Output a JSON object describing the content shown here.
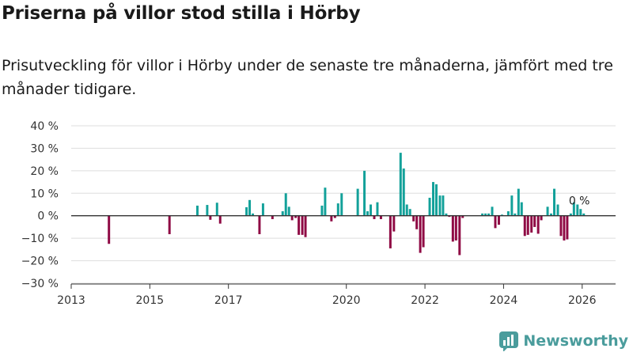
{
  "title": "Priserna på villor stod stilla i Hörby",
  "subtitle": "Prisutveckling för villor i Hörby under de senaste tre månaderna, jämfört med tre månader tidigare.",
  "brand": {
    "name": "Newsworthy"
  },
  "colors": {
    "positive": "#13a19a",
    "negative": "#8f0a44",
    "grid": "#dddddd",
    "axis": "#333333",
    "brand": "#4a9c9c"
  },
  "chart_data": {
    "type": "bar",
    "title": "Priserna på villor stod stilla i Hörby",
    "xlabel": "",
    "ylabel": "",
    "ylim": [
      -30,
      40
    ],
    "yticks": [
      -30,
      -20,
      -10,
      0,
      10,
      20,
      30,
      40
    ],
    "ytick_labels": [
      "−30 %",
      "−20 %",
      "−10 %",
      "0 %",
      "10 %",
      "20 %",
      "30 %",
      "40 %"
    ],
    "xlim": [
      2013.0,
      2026.85
    ],
    "xticks": [
      2013,
      2015,
      2017,
      2020,
      2022,
      2024,
      2026
    ],
    "xtick_labels": [
      "2013",
      "2015",
      "2017",
      "2020",
      "2022",
      "2024",
      "2026"
    ],
    "annotation": {
      "text": "0 %",
      "x": 2025.8,
      "y": 0.8
    },
    "bar_width_years": 0.06,
    "x": [
      2013.96,
      2015.5,
      2016.21,
      2016.46,
      2016.54,
      2016.71,
      2016.79,
      2017.46,
      2017.54,
      2017.62,
      2017.79,
      2017.88,
      2018.12,
      2018.38,
      2018.46,
      2018.54,
      2018.62,
      2018.71,
      2018.79,
      2018.88,
      2018.96,
      2019.38,
      2019.46,
      2019.62,
      2019.71,
      2019.79,
      2019.88,
      2020.29,
      2020.46,
      2020.54,
      2020.62,
      2020.71,
      2020.79,
      2020.88,
      2021.12,
      2021.21,
      2021.38,
      2021.46,
      2021.54,
      2021.62,
      2021.71,
      2021.79,
      2021.88,
      2021.96,
      2022.12,
      2022.21,
      2022.29,
      2022.38,
      2022.46,
      2022.54,
      2022.62,
      2022.71,
      2022.79,
      2022.88,
      2022.96,
      2023.46,
      2023.54,
      2023.62,
      2023.71,
      2023.79,
      2023.88,
      2023.96,
      2024.12,
      2024.21,
      2024.29,
      2024.38,
      2024.46,
      2024.54,
      2024.62,
      2024.71,
      2024.79,
      2024.88,
      2024.96,
      2025.12,
      2025.21,
      2025.29,
      2025.38,
      2025.46,
      2025.54,
      2025.62,
      2025.71,
      2025.79,
      2025.88,
      2025.96,
      2026.04
    ],
    "values": [
      -12.5,
      -8.2,
      4.5,
      4.8,
      -1.8,
      5.8,
      -3.5,
      3.8,
      7,
      1,
      -8.2,
      5.5,
      -1.5,
      2,
      10,
      4,
      -2,
      -1,
      -8.5,
      -8.5,
      -9.5,
      4.5,
      12.5,
      -2.5,
      -1,
      5.5,
      10,
      12,
      20,
      2,
      5,
      -1.5,
      6,
      -1.5,
      -14.5,
      -7,
      28,
      21,
      5,
      3,
      -2.5,
      -6,
      -16.5,
      -14,
      8,
      15,
      14,
      9,
      9,
      1,
      -0.5,
      -11.5,
      -11,
      -17.5,
      -1,
      1,
      1,
      1,
      4,
      -5.5,
      -4,
      0.5,
      2,
      9,
      1,
      12,
      6,
      -9,
      -8.5,
      -7.5,
      -5,
      -8,
      -2,
      4,
      1,
      12,
      5,
      -9,
      -11,
      -10.5,
      1,
      6,
      5,
      3,
      1
    ]
  }
}
